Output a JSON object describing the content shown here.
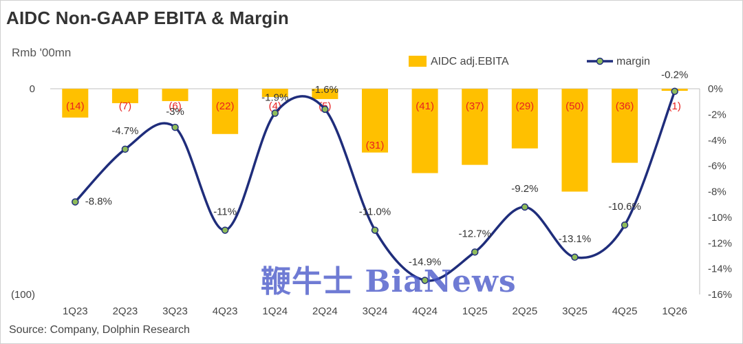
{
  "title": "AIDC Non-GAAP EBITA & Margin",
  "unit_label": "Rmb '00mn",
  "source": "Source: Company, Dolphin Research",
  "watermark": "鞭牛士 BiaNews",
  "colors": {
    "bar": "#ffc000",
    "line": "#1f2d7b",
    "marker_fill": "#8fbc5a",
    "bar_label": "#e8201f"
  },
  "chart_data": {
    "type": "bar+line",
    "categories": [
      "1Q23",
      "2Q23",
      "3Q23",
      "4Q23",
      "1Q24",
      "2Q24",
      "3Q24",
      "4Q24",
      "1Q25",
      "2Q25",
      "3Q25",
      "4Q25",
      "1Q26"
    ],
    "series": [
      {
        "name": "AIDC adj.EBITA",
        "type": "bar",
        "axis": "left",
        "values": [
          -14,
          -7,
          -6,
          -22,
          -4,
          -5,
          -31,
          -41,
          -37,
          -29,
          -50,
          -36,
          -1
        ],
        "labels": [
          "(14)",
          "(7)",
          "(6)",
          "(22)",
          "(4)",
          "(5)",
          "(31)",
          "(41)",
          "(37)",
          "(29)",
          "(50)",
          "(36)",
          "(1)"
        ]
      },
      {
        "name": "margin",
        "type": "line",
        "axis": "right",
        "values": [
          -8.8,
          -4.7,
          -3.0,
          -11.0,
          -1.9,
          -1.6,
          -11.0,
          -14.9,
          -12.7,
          -9.2,
          -13.1,
          -10.6,
          -0.2
        ],
        "labels": [
          "-8.8%",
          "-4.7%",
          "-3%",
          "-11%",
          "-1.9%",
          "-1.6%",
          "-11.0%",
          "-14.9%",
          "-12.7%",
          "-9.2%",
          "-13.1%",
          "-10.6%",
          "-0.2%"
        ]
      }
    ],
    "left_axis": {
      "range": [
        -100,
        0
      ],
      "tick_labels": [
        "0",
        "(100)"
      ]
    },
    "right_axis": {
      "range": [
        -16,
        0
      ],
      "step": 2,
      "tick_labels": [
        "0%",
        "-2%",
        "-4%",
        "-6%",
        "-8%",
        "-10%",
        "-12%",
        "-14%",
        "-16%"
      ]
    },
    "legend": {
      "position": "top-right",
      "items": [
        "AIDC adj.EBITA",
        "margin"
      ]
    },
    "grid": false
  }
}
